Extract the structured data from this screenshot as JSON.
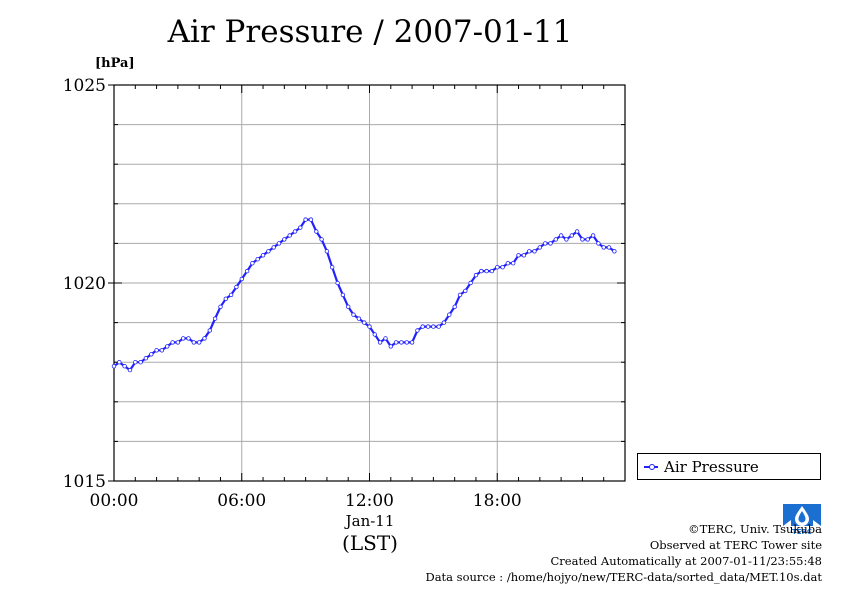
{
  "chart_data": {
    "type": "line",
    "title": "Air Pressure / 2007-01-11",
    "ylabel": "[hPa]",
    "xlabel": "(LST)",
    "x_date_label": "Jan-11",
    "ylim": [
      1015,
      1025
    ],
    "xlim_hours": [
      0,
      24
    ],
    "y_ticks": [
      "1015",
      "1020",
      "1025"
    ],
    "x_ticks": [
      {
        "hour": 0,
        "label": "00:00"
      },
      {
        "hour": 6,
        "label": "06:00"
      },
      {
        "hour": 12,
        "label": "12:00"
      },
      {
        "hour": 18,
        "label": "18:00"
      }
    ],
    "grid": true,
    "legend_position": "right",
    "series": [
      {
        "name": "Air Pressure",
        "color": "#2222ff",
        "x_hours": [
          0,
          0.25,
          0.5,
          0.75,
          1,
          1.25,
          1.5,
          1.75,
          2,
          2.25,
          2.5,
          2.75,
          3,
          3.25,
          3.5,
          3.75,
          4,
          4.25,
          4.5,
          4.75,
          5,
          5.25,
          5.5,
          5.75,
          6,
          6.25,
          6.5,
          6.75,
          7,
          7.25,
          7.5,
          7.75,
          8,
          8.25,
          8.5,
          8.75,
          9,
          9.25,
          9.5,
          9.75,
          10,
          10.25,
          10.5,
          10.75,
          11,
          11.25,
          11.5,
          11.75,
          12,
          12.25,
          12.5,
          12.75,
          13,
          13.25,
          13.5,
          13.75,
          14,
          14.25,
          14.5,
          14.75,
          15,
          15.25,
          15.5,
          15.75,
          16,
          16.25,
          16.5,
          16.75,
          17,
          17.25,
          17.5,
          17.75,
          18,
          18.25,
          18.5,
          18.75,
          19,
          19.25,
          19.5,
          19.75,
          20,
          20.25,
          20.5,
          20.75,
          21,
          21.25,
          21.5,
          21.75,
          22,
          22.25,
          22.5,
          22.75,
          23,
          23.25,
          23.5
        ],
        "values": [
          1017.9,
          1018.0,
          1017.9,
          1017.8,
          1018.0,
          1018.0,
          1018.1,
          1018.2,
          1018.3,
          1018.3,
          1018.4,
          1018.5,
          1018.5,
          1018.6,
          1018.6,
          1018.5,
          1018.5,
          1018.6,
          1018.8,
          1019.1,
          1019.4,
          1019.6,
          1019.7,
          1019.9,
          1020.1,
          1020.3,
          1020.5,
          1020.6,
          1020.7,
          1020.8,
          1020.9,
          1021.0,
          1021.1,
          1021.2,
          1021.3,
          1021.4,
          1021.6,
          1021.6,
          1021.3,
          1021.1,
          1020.8,
          1020.4,
          1020.0,
          1019.7,
          1019.4,
          1019.2,
          1019.1,
          1019.0,
          1018.9,
          1018.7,
          1018.5,
          1018.6,
          1018.4,
          1018.5,
          1018.5,
          1018.5,
          1018.5,
          1018.8,
          1018.9,
          1018.9,
          1018.9,
          1018.9,
          1019.0,
          1019.2,
          1019.4,
          1019.7,
          1019.8,
          1020.0,
          1020.2,
          1020.3,
          1020.3,
          1020.3,
          1020.4,
          1020.4,
          1020.5,
          1020.5,
          1020.7,
          1020.7,
          1020.8,
          1020.8,
          1020.9,
          1021.0,
          1021.0,
          1021.1,
          1021.2,
          1021.1,
          1021.2,
          1021.3,
          1021.1,
          1021.1,
          1021.2,
          1021.0,
          1020.9,
          1020.9,
          1020.8
        ]
      }
    ]
  },
  "legend": {
    "label": "Air Pressure"
  },
  "credits": {
    "line1": "©TERC, Univ. Tsukuba",
    "line2": "Observed at TERC Tower site",
    "line3": "Created Automatically at 2007-01-11/23:55:48",
    "line4": "Data source : /home/hojyo/new/TERC-data/sorted_data/MET.10s.dat"
  },
  "logo": {
    "icon": "terc-logo-icon",
    "text": "TERC",
    "color": "#1a6fd0"
  }
}
